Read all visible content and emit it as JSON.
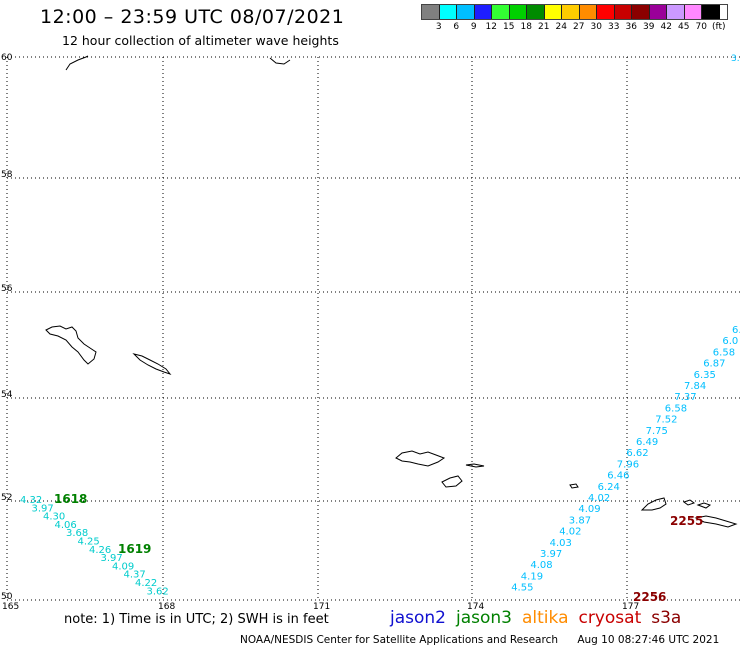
{
  "header": {
    "title": "12:00 – 23:59 UTC 08/07/2021",
    "subtitle": "12 hour collection of altimeter wave heights"
  },
  "legend": {
    "colors": [
      "#808080",
      "#00ffff",
      "#00bfff",
      "#1e1eff",
      "#33ff33",
      "#00d000",
      "#008b00",
      "#ffff00",
      "#ffcc00",
      "#ff8c00",
      "#ff0000",
      "#c80000",
      "#8b0000",
      "#9a0099",
      "#cc99ff",
      "#ff88ff",
      "#000000"
    ],
    "labels": [
      "3",
      "6",
      "9",
      "12",
      "15",
      "18",
      "21",
      "24",
      "27",
      "30",
      "33",
      "36",
      "39",
      "42",
      "45",
      "70",
      "(ft)"
    ]
  },
  "map": {
    "lat_labels": [
      "60",
      "58",
      "56",
      "54",
      "52",
      "50"
    ],
    "lon_labels": [
      "165",
      "168",
      "171",
      "174",
      "177"
    ],
    "top_right_fragment": "3.",
    "track_west": {
      "color": "#00cccc",
      "values": [
        "4.32",
        "3.97",
        "4.30",
        "4.06",
        "3.68",
        "4.25",
        "4.26",
        "3.97",
        "4.09",
        "4.37",
        "4.22",
        "3.62"
      ]
    },
    "track_east": {
      "color": "#00bfff",
      "values": [
        "6.",
        "6.0",
        "6.58",
        "6.87",
        "6.35",
        "7.84",
        "7.37",
        "6.58",
        "7.52",
        "7.75",
        "6.49",
        "6.62",
        "7.96",
        "6.46",
        "6.24",
        "4.02",
        "4.09",
        "3.87",
        "4.02",
        "4.03",
        "3.97",
        "4.08",
        "4.19",
        "4.55"
      ]
    },
    "pass_labels": [
      {
        "text": "1618",
        "color": "#008000"
      },
      {
        "text": "1619",
        "color": "#008000"
      },
      {
        "text": "2255",
        "color": "#8b0000"
      },
      {
        "text": "2256",
        "color": "#8b0000"
      }
    ]
  },
  "footer": {
    "note": "note:  1) Time is in UTC;  2) SWH is in feet",
    "satellites": [
      {
        "name": "jason2",
        "color": "#1010d0"
      },
      {
        "name": "jason3",
        "color": "#008000"
      },
      {
        "name": "altika",
        "color": "#ff8c00"
      },
      {
        "name": "cryosat",
        "color": "#c80000"
      },
      {
        "name": "s3a",
        "color": "#8b0000"
      }
    ],
    "credit": "NOAA/NESDIS Center for Satellite Applications and Research",
    "timestamp": "Aug 10 08:27:46 UTC 2021"
  }
}
